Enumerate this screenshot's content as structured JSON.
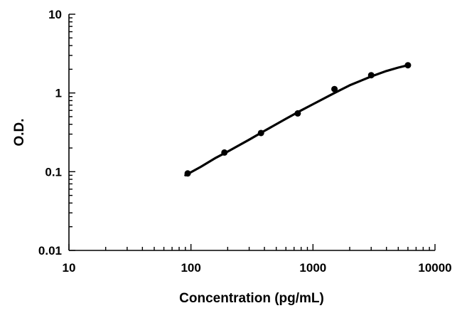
{
  "chart_data": {
    "type": "scatter",
    "title": "",
    "xlabel": "Concentration (pg/mL)",
    "ylabel": "O.D.",
    "x_scale": "log",
    "y_scale": "log",
    "xlim": [
      10,
      10000
    ],
    "ylim": [
      0.01,
      10
    ],
    "x_ticks": [
      "10",
      "100",
      "1000",
      "10000"
    ],
    "y_ticks": [
      "10",
      "1",
      "0.1",
      "0.01"
    ],
    "grid": false,
    "legend": "none",
    "series": [
      {
        "mode": "markers",
        "x": [
          94,
          188,
          375,
          750,
          1500,
          3000,
          6000
        ],
        "y": [
          0.095,
          0.175,
          0.31,
          0.55,
          1.12,
          1.68,
          2.25
        ]
      },
      {
        "mode": "line",
        "x": [
          90,
          120,
          160,
          200,
          300,
          400,
          600,
          800,
          1000,
          1500,
          2000,
          3000,
          4000,
          5000,
          6000
        ],
        "y": [
          0.09,
          0.115,
          0.15,
          0.18,
          0.255,
          0.33,
          0.47,
          0.6,
          0.72,
          1.0,
          1.25,
          1.62,
          1.9,
          2.1,
          2.25
        ]
      }
    ]
  }
}
